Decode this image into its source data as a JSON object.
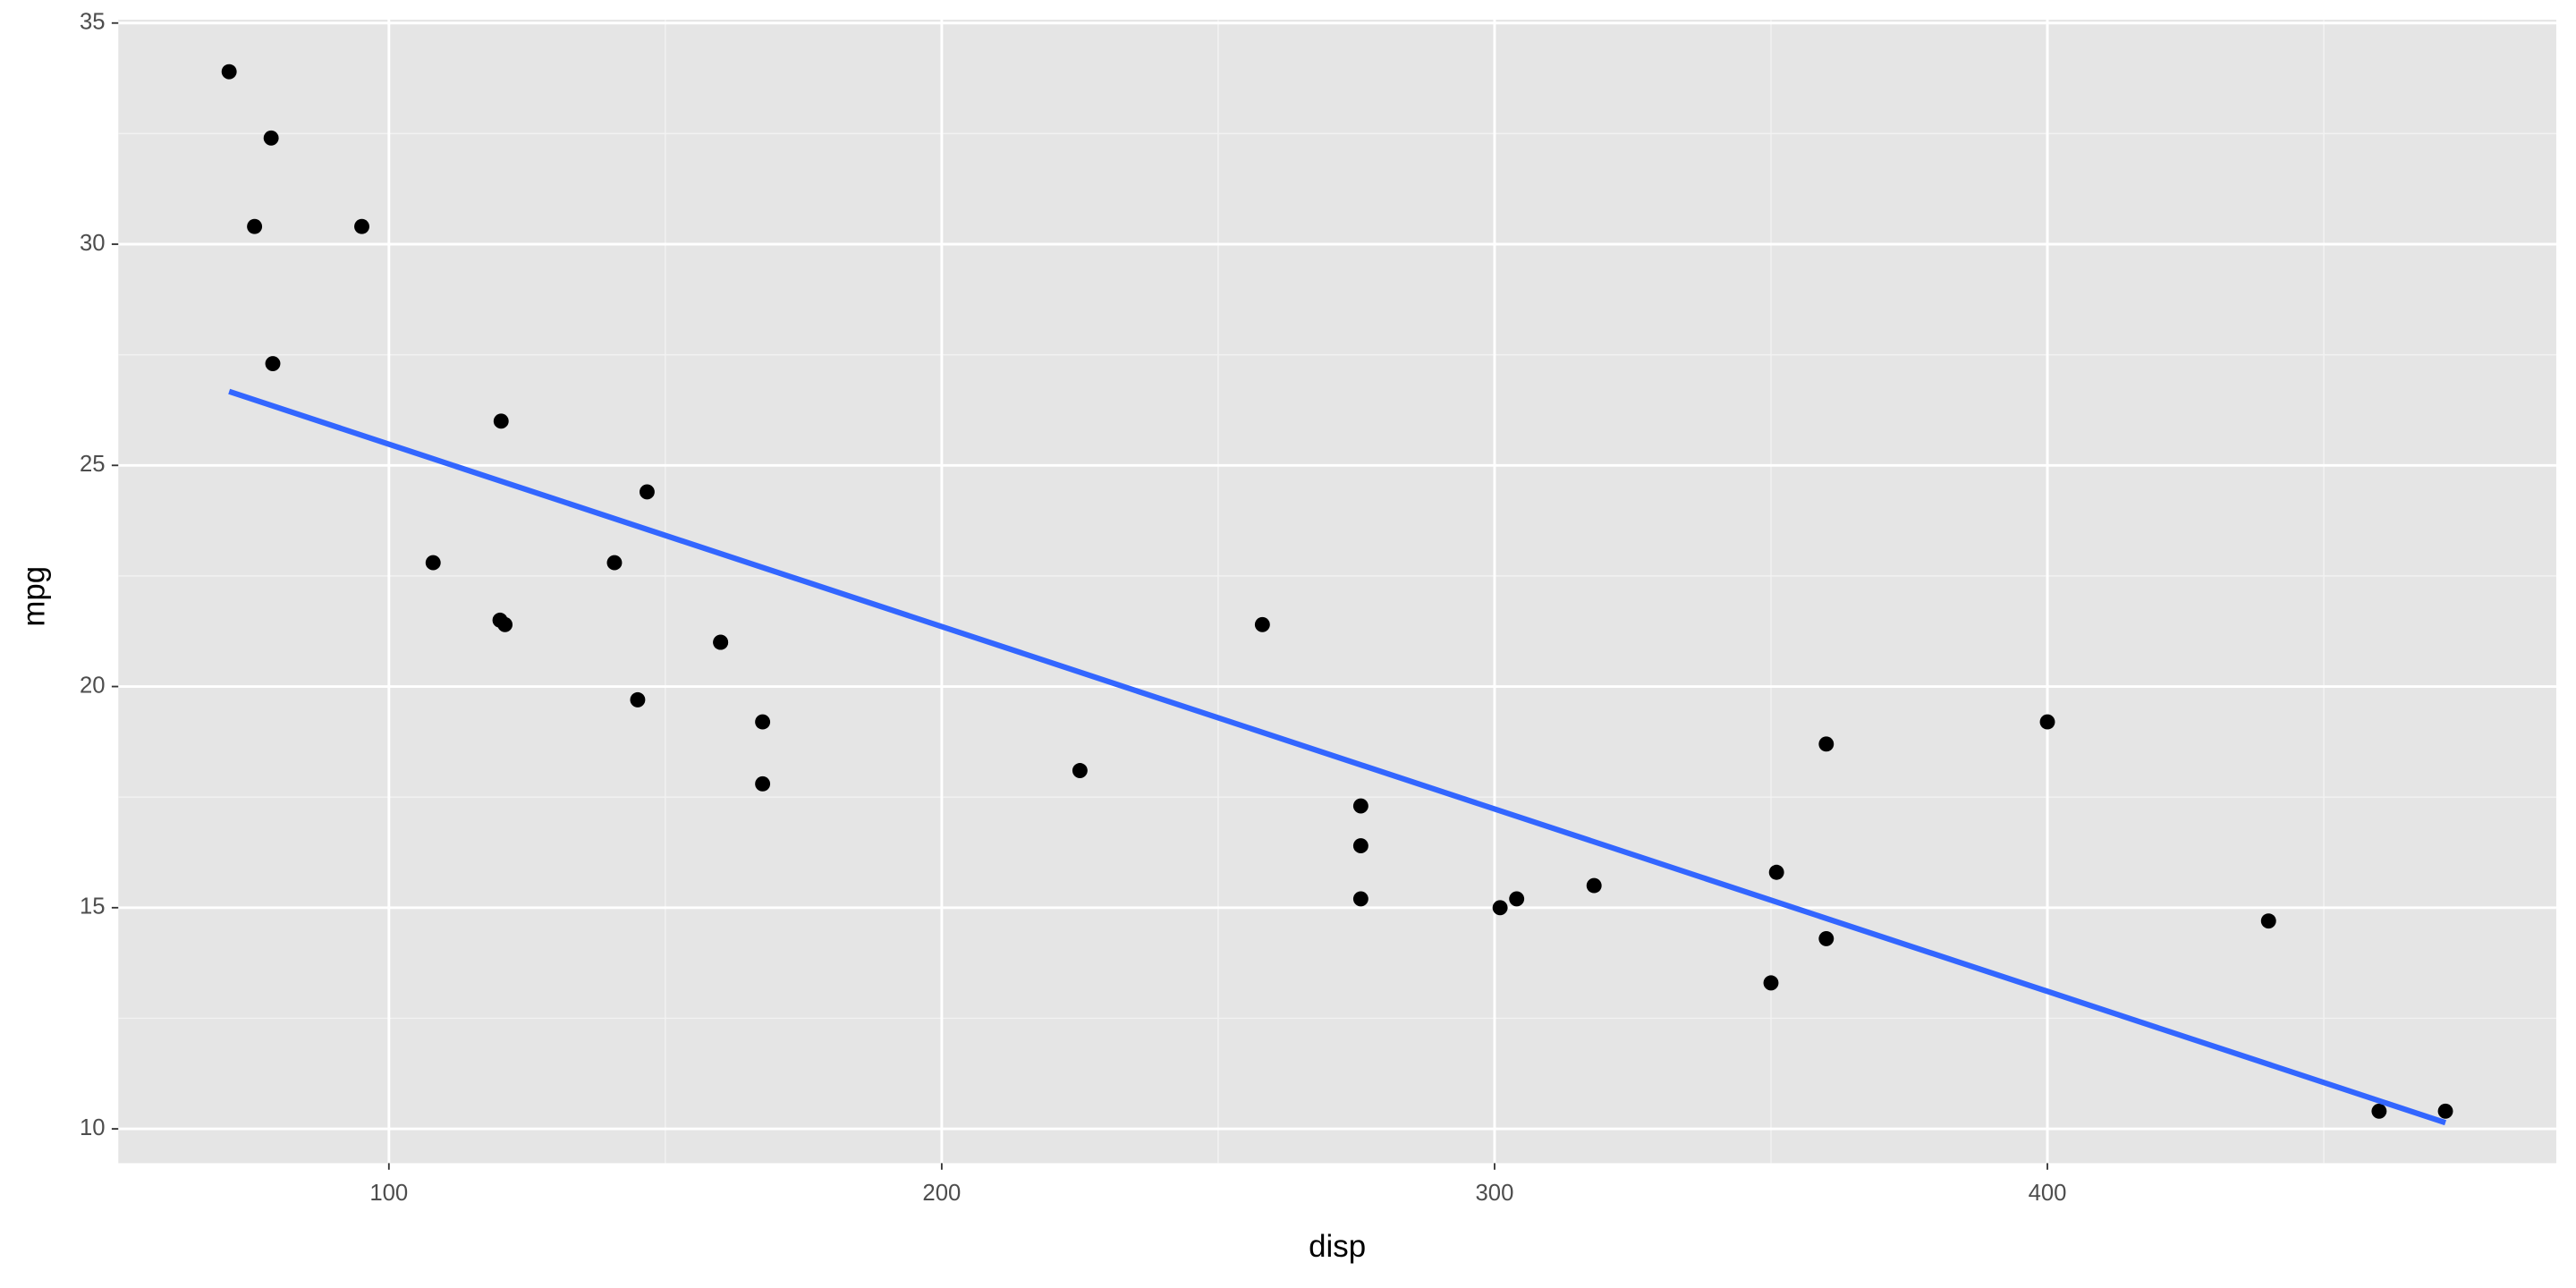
{
  "chart_data": {
    "type": "scatter",
    "x_label": "disp",
    "y_label": "mpg",
    "x": [
      160,
      160,
      108,
      258,
      360,
      225,
      360,
      146.7,
      140.8,
      167.6,
      167.6,
      275.8,
      275.8,
      275.8,
      472,
      460,
      440,
      78.7,
      75.7,
      71.1,
      120.1,
      318,
      304,
      350,
      400,
      79,
      120.3,
      95.1,
      351,
      145,
      301,
      121
    ],
    "values": [
      21,
      21,
      22.8,
      21.4,
      18.7,
      18.1,
      14.3,
      24.4,
      22.8,
      19.2,
      17.8,
      16.4,
      17.3,
      15.2,
      10.4,
      10.4,
      14.7,
      32.4,
      30.4,
      33.9,
      21.5,
      15.5,
      15.2,
      13.3,
      19.2,
      27.3,
      26,
      30.4,
      15.8,
      19.7,
      15,
      21.4
    ],
    "color": "#000000",
    "fit": {
      "x": [
        71.1,
        472
      ],
      "values": [
        26.67,
        10.14
      ],
      "color": "#3366ff"
    },
    "xlim": [
      51.05,
      492.05
    ],
    "xticks": [
      100,
      200,
      300,
      400
    ],
    "ylim": [
      9.225,
      35.075
    ],
    "yticks": [
      10,
      15,
      20,
      25,
      30,
      35
    ],
    "grid": true,
    "background": "#e5e5e5"
  }
}
